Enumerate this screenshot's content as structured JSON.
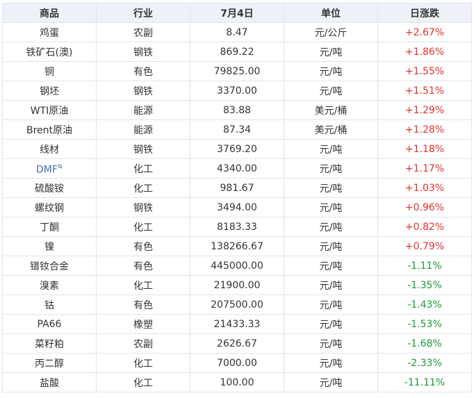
{
  "table": {
    "header": [
      "商品",
      "行业",
      "7月4日",
      "单位",
      "日涨跌"
    ],
    "rows": [
      [
        "鸡蛋",
        "农副",
        "8.47",
        "元/公斤",
        "+2.67%"
      ],
      [
        "铁矿石(澳)",
        "钢铁",
        "869.22",
        "元/吨",
        "+1.86%"
      ],
      [
        "铜",
        "有色",
        "79825.00",
        "元/吨",
        "+1.55%"
      ],
      [
        "钢坯",
        "钢铁",
        "3370.00",
        "元/吨",
        "+1.51%"
      ],
      [
        "WTI原油",
        "能源",
        "83.88",
        "美元/桶",
        "+1.29%"
      ],
      [
        "Brent原油",
        "能源",
        "87.34",
        "美元/桶",
        "+1.28%"
      ],
      [
        "线材",
        "钢铁",
        "3769.20",
        "元/吨",
        "+1.18%"
      ],
      [
        "DMF",
        "化工",
        "4340.00",
        "元/吨",
        "+1.17%"
      ],
      [
        "硫酸铵",
        "化工",
        "981.67",
        "元/吨",
        "+1.03%"
      ],
      [
        "螺纹钢",
        "钢铁",
        "3494.00",
        "元/吨",
        "+0.96%"
      ],
      [
        "丁酮",
        "化工",
        "8183.33",
        "元/吨",
        "+0.82%"
      ],
      [
        "镍",
        "有色",
        "138266.67",
        "元/吨",
        "+0.79%"
      ],
      [
        "镨钕合金",
        "有色",
        "445000.00",
        "元/吨",
        "-1.11%"
      ],
      [
        "溴素",
        "化工",
        "21900.00",
        "元/吨",
        "-1.35%"
      ],
      [
        "钴",
        "有色",
        "207500.00",
        "元/吨",
        "-1.43%"
      ],
      [
        "PA66",
        "橡塑",
        "21433.33",
        "元/吨",
        "-1.53%"
      ],
      [
        "菜籽粕",
        "农副",
        "2626.67",
        "元/吨",
        "-1.68%"
      ],
      [
        "丙二醇",
        "化工",
        "7000.00",
        "元/吨",
        "-2.33%"
      ],
      [
        "盐酸",
        "化工",
        "100.00",
        "元/吨",
        "-11.11%"
      ]
    ],
    "link_rows": [
      7
    ]
  }
}
